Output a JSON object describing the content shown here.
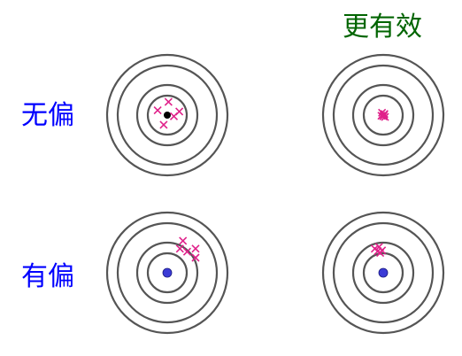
{
  "labels": {
    "more_efficient": "更有效",
    "unbiased": "无偏",
    "biased": "有偏"
  },
  "colors": {
    "efficient_label": "#006400",
    "row_label": "#0000ff",
    "rings": "#555555",
    "marks": "#e0218a",
    "center_black": "#000000",
    "center_blue": "#3b3bd6"
  },
  "icons": {
    "target": "concentric-rings",
    "mark": "x-cross"
  },
  "targets": [
    {
      "row": "unbiased",
      "column": "less-efficient",
      "center_dot": "black",
      "shots": [
        [
          0.02,
          0.22
        ],
        [
          -0.16,
          0.08
        ],
        [
          0.11,
          -0.02
        ],
        [
          -0.06,
          -0.16
        ],
        [
          0.2,
          0.06
        ]
      ]
    },
    {
      "row": "unbiased",
      "column": "more-efficient",
      "center_dot": "none",
      "shots": [
        [
          -0.02,
          0.04
        ],
        [
          0.02,
          0.02
        ],
        [
          0.0,
          -0.02
        ],
        [
          -0.03,
          -0.01
        ],
        [
          0.03,
          -0.03
        ],
        [
          0.01,
          0.0
        ]
      ]
    },
    {
      "row": "biased",
      "column": "less-efficient",
      "center_dot": "blue",
      "shots": [
        [
          0.26,
          0.53
        ],
        [
          0.21,
          0.4
        ],
        [
          0.33,
          0.35
        ],
        [
          0.47,
          0.4
        ],
        [
          0.47,
          0.25
        ]
      ]
    },
    {
      "row": "biased",
      "column": "more-efficient",
      "center_dot": "blue",
      "shots": [
        [
          -0.14,
          0.4
        ],
        [
          -0.07,
          0.43
        ],
        [
          -0.02,
          0.37
        ],
        [
          -0.05,
          0.33
        ],
        [
          -0.09,
          0.36
        ]
      ]
    }
  ]
}
